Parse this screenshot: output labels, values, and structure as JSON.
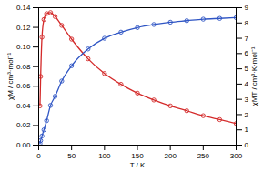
{
  "chart_data": {
    "type": "line",
    "x_label": "T / K",
    "y_label": "χM / cm³·mol⁻¹",
    "y2_label": "χMT / cm³·K·mol⁻¹",
    "x": [
      2,
      3,
      5,
      8,
      12,
      18,
      25,
      35,
      50,
      75,
      100,
      125,
      150,
      175,
      200,
      225,
      250,
      275,
      300
    ],
    "series": [
      {
        "color": "#d42a2a",
        "marker": "circle",
        "line_style": "solid",
        "values": [
          0.04,
          0.07,
          0.11,
          0.128,
          0.134,
          0.135,
          0.131,
          0.122,
          0.108,
          0.088,
          0.073,
          0.062,
          0.053,
          0.046,
          0.04,
          0.035,
          0.03,
          0.026,
          0.022
        ]
      },
      {
        "color": "#2f55c4",
        "marker": "circle",
        "line_style": "solid",
        "axis": "y2",
        "values": [
          0.1,
          0.3,
          0.6,
          1.0,
          1.6,
          2.6,
          3.2,
          4.2,
          5.2,
          6.3,
          7.0,
          7.4,
          7.7,
          7.9,
          8.05,
          8.15,
          8.25,
          8.3,
          8.35
        ]
      }
    ],
    "xlim": [
      0,
      300
    ],
    "xticks": [
      0,
      50,
      100,
      150,
      200,
      250,
      300
    ],
    "ylim": [
      0,
      0.14
    ],
    "yticks": [
      {
        "value": 0,
        "label": "0.00"
      },
      {
        "value": 0.02,
        "label": "0.02"
      },
      {
        "value": 0.04,
        "label": "0.04"
      },
      {
        "value": 0.06,
        "label": "0.06"
      },
      {
        "value": 0.08,
        "label": "0.08"
      },
      {
        "value": 0.1,
        "label": "0.10"
      },
      {
        "value": 0.12,
        "label": "0.12"
      },
      {
        "value": 0.14,
        "label": "0.14"
      }
    ],
    "y2lim": [
      0,
      9
    ],
    "y2ticks": [
      0,
      1,
      2,
      3,
      4,
      5,
      6,
      7,
      8,
      9
    ]
  }
}
